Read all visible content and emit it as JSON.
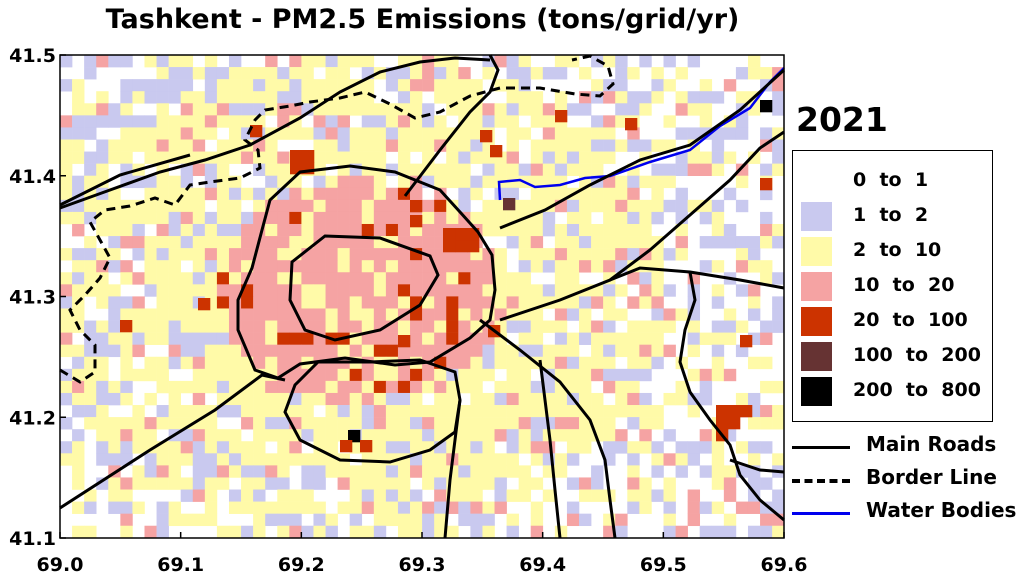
{
  "title": "Tashkent - PM2.5 Emissions (tons/grid/yr)",
  "year": "2021",
  "x_ticks": [
    "69.0",
    "69.1",
    "69.2",
    "69.3",
    "69.4",
    "69.5",
    "69.6"
  ],
  "y_ticks": [
    "41.5",
    "41.4",
    "41.3",
    "41.2",
    "41.1"
  ],
  "legend": [
    {
      "label": "0  to  1",
      "color": "#ffffff"
    },
    {
      "label": "1  to  2",
      "color": "#c9c9ef"
    },
    {
      "label": "2  to  10",
      "color": "#fffaa8"
    },
    {
      "label": "10  to  20",
      "color": "#f5a3a3"
    },
    {
      "label": "20  to  100",
      "color": "#cc3300"
    },
    {
      "label": "100  to  200",
      "color": "#663333"
    },
    {
      "label": "200  to  800",
      "color": "#000000"
    }
  ],
  "line_legend": [
    {
      "label": "Main Roads",
      "style": "solid",
      "color": "#000000"
    },
    {
      "label": "Border Line",
      "style": "dashed",
      "color": "#000000"
    },
    {
      "label": "Water Bodies",
      "style": "solid",
      "color": "#0000ee"
    }
  ],
  "extent": {
    "lon": [
      69.0,
      69.6
    ],
    "lat": [
      41.1,
      41.5
    ]
  }
}
